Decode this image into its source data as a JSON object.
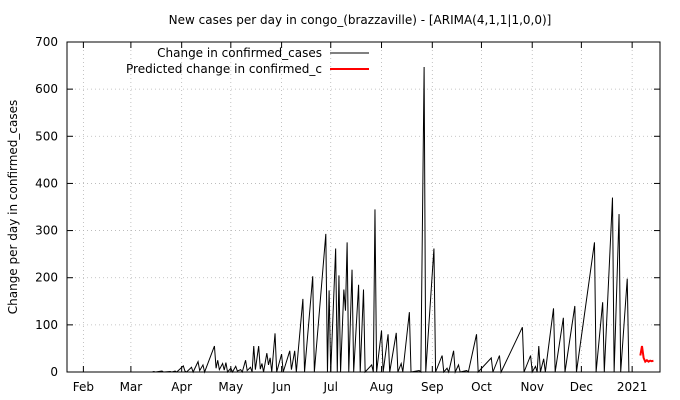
{
  "chart_data": {
    "type": "line",
    "title": "New cases per day in congo_(brazzaville) -  [ARIMA(4,1,1|1,0,0)]",
    "xlabel": "",
    "ylabel": "Change per day in confirmed_cases",
    "ylim": [
      0,
      700
    ],
    "yticks": [
      0,
      100,
      200,
      300,
      400,
      500,
      600,
      700
    ],
    "xlim": [
      "2020-01-22",
      "2021-01-18"
    ],
    "xticks": [
      {
        "label": "Feb",
        "date": "2020-02-01"
      },
      {
        "label": "Mar",
        "date": "2020-03-01"
      },
      {
        "label": "Apr",
        "date": "2020-04-01"
      },
      {
        "label": "May",
        "date": "2020-05-01"
      },
      {
        "label": "Jun",
        "date": "2020-06-01"
      },
      {
        "label": "Jul",
        "date": "2020-07-01"
      },
      {
        "label": "Aug",
        "date": "2020-08-01"
      },
      {
        "label": "Sep",
        "date": "2020-09-01"
      },
      {
        "label": "Oct",
        "date": "2020-10-01"
      },
      {
        "label": "Nov",
        "date": "2020-11-01"
      },
      {
        "label": "Dec",
        "date": "2020-12-01"
      },
      {
        "label": "2021",
        "date": "2021-01-01"
      }
    ],
    "grid": true,
    "legend_position": "top-left",
    "series": [
      {
        "name": "Change in confirmed_cases",
        "color": "#000000",
        "points": [
          [
            "2020-01-22",
            0
          ],
          [
            "2020-03-14",
            0
          ],
          [
            "2020-03-15",
            1
          ],
          [
            "2020-03-16",
            0
          ],
          [
            "2020-03-20",
            2
          ],
          [
            "2020-03-21",
            0
          ],
          [
            "2020-03-25",
            1
          ],
          [
            "2020-03-26",
            0
          ],
          [
            "2020-03-28",
            2
          ],
          [
            "2020-03-29",
            0
          ],
          [
            "2020-04-02",
            13
          ],
          [
            "2020-04-03",
            2
          ],
          [
            "2020-04-04",
            0
          ],
          [
            "2020-04-07",
            10
          ],
          [
            "2020-04-08",
            0
          ],
          [
            "2020-04-11",
            22
          ],
          [
            "2020-04-12",
            3
          ],
          [
            "2020-04-14",
            15
          ],
          [
            "2020-04-15",
            0
          ],
          [
            "2020-04-21",
            55
          ],
          [
            "2020-04-22",
            8
          ],
          [
            "2020-04-23",
            25
          ],
          [
            "2020-04-24",
            5
          ],
          [
            "2020-04-26",
            18
          ],
          [
            "2020-04-27",
            4
          ],
          [
            "2020-04-28",
            20
          ],
          [
            "2020-04-29",
            0
          ],
          [
            "2020-05-01",
            8
          ],
          [
            "2020-05-02",
            0
          ],
          [
            "2020-05-04",
            12
          ],
          [
            "2020-05-05",
            2
          ],
          [
            "2020-05-07",
            5
          ],
          [
            "2020-05-08",
            0
          ],
          [
            "2020-05-10",
            25
          ],
          [
            "2020-05-11",
            3
          ],
          [
            "2020-05-13",
            10
          ],
          [
            "2020-05-14",
            0
          ],
          [
            "2020-05-15",
            55
          ],
          [
            "2020-05-16",
            5
          ],
          [
            "2020-05-18",
            55
          ],
          [
            "2020-05-19",
            6
          ],
          [
            "2020-05-20",
            18
          ],
          [
            "2020-05-21",
            0
          ],
          [
            "2020-05-23",
            40
          ],
          [
            "2020-05-24",
            15
          ],
          [
            "2020-05-25",
            30
          ],
          [
            "2020-05-26",
            0
          ],
          [
            "2020-05-28",
            82
          ],
          [
            "2020-05-29",
            0
          ],
          [
            "2020-06-01",
            38
          ],
          [
            "2020-06-02",
            0
          ],
          [
            "2020-06-06",
            45
          ],
          [
            "2020-06-07",
            5
          ],
          [
            "2020-06-09",
            45
          ],
          [
            "2020-06-10",
            0
          ],
          [
            "2020-06-14",
            155
          ],
          [
            "2020-06-15",
            0
          ],
          [
            "2020-06-20",
            203
          ],
          [
            "2020-06-21",
            0
          ],
          [
            "2020-06-28",
            293
          ],
          [
            "2020-06-29",
            0
          ],
          [
            "2020-06-30",
            173
          ],
          [
            "2020-07-01",
            0
          ],
          [
            "2020-07-04",
            262
          ],
          [
            "2020-07-05",
            0
          ],
          [
            "2020-07-06",
            205
          ],
          [
            "2020-07-07",
            0
          ],
          [
            "2020-07-09",
            175
          ],
          [
            "2020-07-10",
            130
          ],
          [
            "2020-07-11",
            275
          ],
          [
            "2020-07-12",
            0
          ],
          [
            "2020-07-14",
            217
          ],
          [
            "2020-07-15",
            0
          ],
          [
            "2020-07-18",
            185
          ],
          [
            "2020-07-19",
            0
          ],
          [
            "2020-07-21",
            175
          ],
          [
            "2020-07-22",
            0
          ],
          [
            "2020-07-26",
            15
          ],
          [
            "2020-07-27",
            0
          ],
          [
            "2020-07-28",
            345
          ],
          [
            "2020-07-29",
            0
          ],
          [
            "2020-08-01",
            88
          ],
          [
            "2020-08-02",
            0
          ],
          [
            "2020-08-05",
            80
          ],
          [
            "2020-08-06",
            0
          ],
          [
            "2020-08-10",
            83
          ],
          [
            "2020-08-11",
            0
          ],
          [
            "2020-08-13",
            18
          ],
          [
            "2020-08-14",
            0
          ],
          [
            "2020-08-18",
            127
          ],
          [
            "2020-08-19",
            0
          ],
          [
            "2020-08-24",
            3
          ],
          [
            "2020-08-25",
            0
          ],
          [
            "2020-08-27",
            647
          ],
          [
            "2020-08-28",
            0
          ],
          [
            "2020-09-02",
            262
          ],
          [
            "2020-09-03",
            0
          ],
          [
            "2020-09-07",
            35
          ],
          [
            "2020-09-08",
            0
          ],
          [
            "2020-09-10",
            8
          ],
          [
            "2020-09-11",
            0
          ],
          [
            "2020-09-14",
            45
          ],
          [
            "2020-09-15",
            0
          ],
          [
            "2020-09-17",
            15
          ],
          [
            "2020-09-18",
            0
          ],
          [
            "2020-09-22",
            3
          ],
          [
            "2020-09-23",
            0
          ],
          [
            "2020-09-28",
            80
          ],
          [
            "2020-09-29",
            0
          ],
          [
            "2020-10-07",
            30
          ],
          [
            "2020-10-08",
            0
          ],
          [
            "2020-10-12",
            35
          ],
          [
            "2020-10-13",
            0
          ],
          [
            "2020-10-26",
            95
          ],
          [
            "2020-10-27",
            0
          ],
          [
            "2020-10-31",
            35
          ],
          [
            "2020-11-01",
            0
          ],
          [
            "2020-11-03",
            12
          ],
          [
            "2020-11-04",
            0
          ],
          [
            "2020-11-05",
            55
          ],
          [
            "2020-11-06",
            0
          ],
          [
            "2020-11-08",
            28
          ],
          [
            "2020-11-09",
            0
          ],
          [
            "2020-11-14",
            135
          ],
          [
            "2020-11-15",
            0
          ],
          [
            "2020-11-20",
            115
          ],
          [
            "2020-11-21",
            0
          ],
          [
            "2020-11-27",
            140
          ],
          [
            "2020-11-28",
            0
          ],
          [
            "2020-12-09",
            275
          ],
          [
            "2020-12-10",
            0
          ],
          [
            "2020-12-14",
            148
          ],
          [
            "2020-12-15",
            0
          ],
          [
            "2020-12-20",
            370
          ],
          [
            "2020-12-21",
            0
          ],
          [
            "2020-12-24",
            335
          ],
          [
            "2020-12-25",
            0
          ],
          [
            "2020-12-29",
            198
          ],
          [
            "2020-12-30",
            0
          ],
          [
            "2021-01-01",
            0
          ]
        ]
      },
      {
        "name": "Predicted change in confirmed_c",
        "color": "#ff0000",
        "points": [
          [
            "2021-01-06",
            35
          ],
          [
            "2021-01-07",
            55
          ],
          [
            "2021-01-08",
            30
          ],
          [
            "2021-01-09",
            22
          ],
          [
            "2021-01-10",
            25
          ],
          [
            "2021-01-11",
            22
          ],
          [
            "2021-01-12",
            24
          ],
          [
            "2021-01-13",
            23
          ],
          [
            "2021-01-14",
            24
          ]
        ]
      }
    ]
  }
}
